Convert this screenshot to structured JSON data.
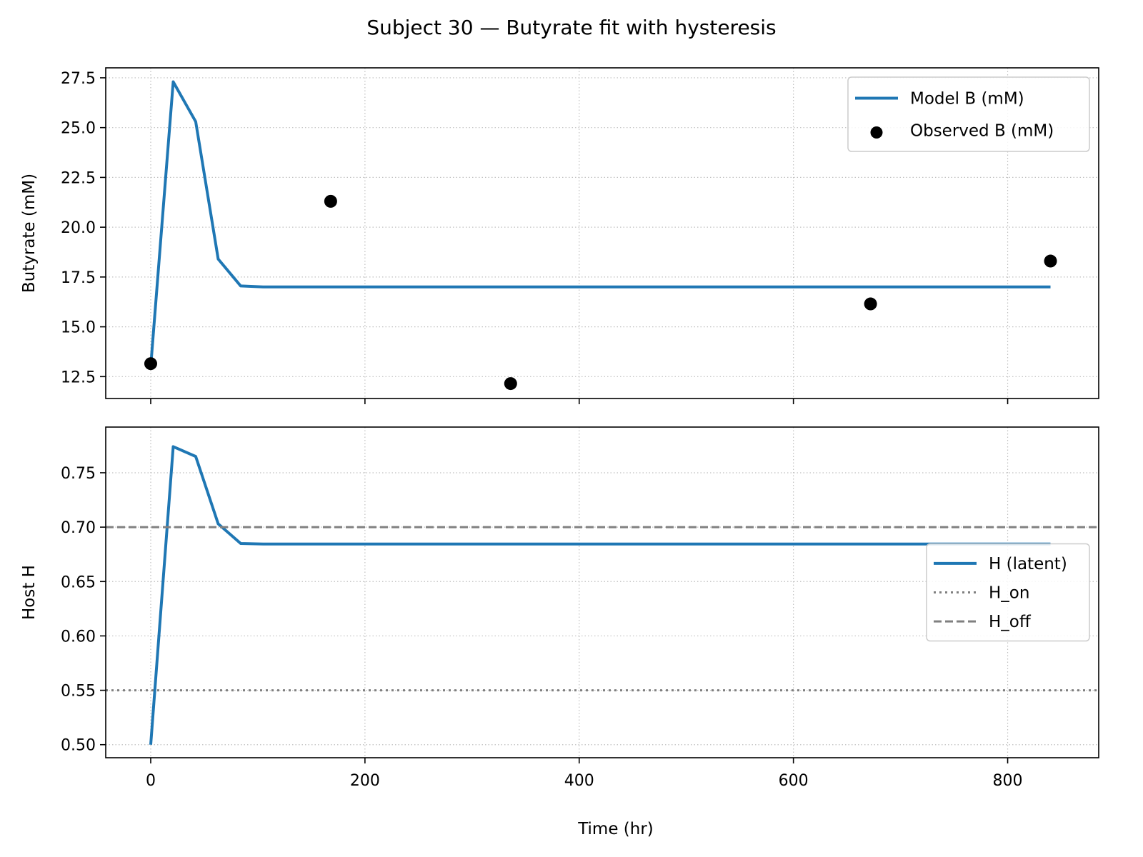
{
  "figure": {
    "title": "Subject 30 — Butyrate fit with hysteresis",
    "xlabel": "Time (hr)"
  },
  "chart_data": [
    {
      "type": "line",
      "panel": "top",
      "ylabel": "Butyrate (mM)",
      "xlim": [
        -42,
        885
      ],
      "ylim": [
        11.4,
        28.0
      ],
      "xticks": [
        0,
        200,
        400,
        600,
        800
      ],
      "yticks": [
        12.5,
        15.0,
        17.5,
        20.0,
        22.5,
        25.0,
        27.5
      ],
      "grid": true,
      "legend_position": "top-right",
      "series": [
        {
          "name": "Model B (mM)",
          "kind": "line",
          "color": "#1f77b4",
          "x": [
            0,
            21,
            42,
            63,
            84,
            105,
            126,
            168,
            336,
            504,
            672,
            840
          ],
          "y": [
            13.0,
            27.3,
            25.3,
            18.4,
            17.05,
            17.0,
            17.0,
            17.0,
            17.0,
            17.0,
            17.0,
            17.0
          ]
        },
        {
          "name": "Observed B (mM)",
          "kind": "scatter",
          "color": "#000000",
          "x": [
            0,
            168,
            336,
            672,
            840
          ],
          "y": [
            13.15,
            21.3,
            12.15,
            16.15,
            18.3
          ]
        }
      ]
    },
    {
      "type": "line",
      "panel": "bottom",
      "ylabel": "Host H",
      "xlim": [
        -42,
        885
      ],
      "ylim": [
        0.488,
        0.792
      ],
      "xticks": [
        0,
        200,
        400,
        600,
        800
      ],
      "yticks": [
        0.5,
        0.55,
        0.6,
        0.65,
        0.7,
        0.75
      ],
      "grid": true,
      "legend_position": "center-right",
      "series": [
        {
          "name": "H (latent)",
          "kind": "line",
          "color": "#1f77b4",
          "x": [
            0,
            21,
            42,
            63,
            84,
            105,
            126,
            168,
            336,
            504,
            672,
            840
          ],
          "y": [
            0.5,
            0.774,
            0.765,
            0.703,
            0.685,
            0.6845,
            0.6845,
            0.6845,
            0.6845,
            0.6845,
            0.6845,
            0.6845
          ]
        },
        {
          "name": "H_on",
          "kind": "hline",
          "style": "dotted",
          "color": "#808080",
          "y": 0.55
        },
        {
          "name": "H_off",
          "kind": "hline",
          "style": "dashed",
          "color": "#808080",
          "y": 0.7
        }
      ]
    }
  ]
}
